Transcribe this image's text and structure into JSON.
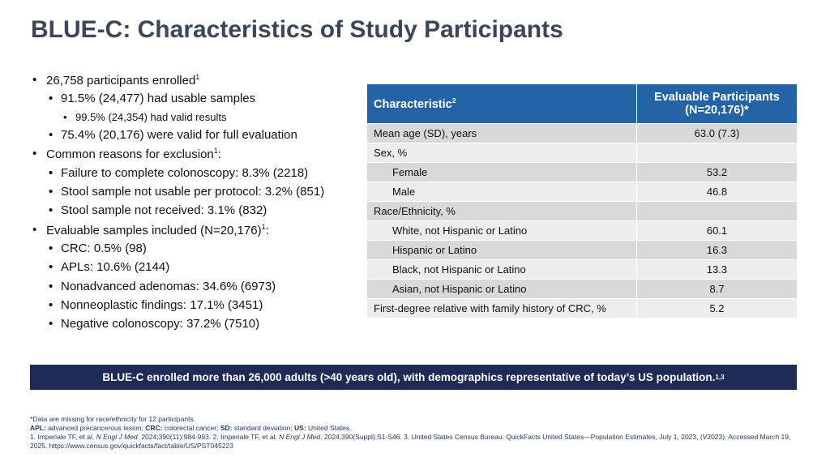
{
  "title": "BLUE-C: Characteristics of Study Participants",
  "bullets": [
    {
      "level": 0,
      "text": "26,758 participants enrolled",
      "sup": "1"
    },
    {
      "level": 1,
      "text": "91.5% (24,477) had usable samples"
    },
    {
      "level": 2,
      "text": "99.5% (24,354) had valid results"
    },
    {
      "level": 1,
      "text": "75.4% (20,176) were valid for full evaluation"
    },
    {
      "level": 0,
      "text": "Common reasons for exclusion",
      "sup": "1",
      "tail": ":"
    },
    {
      "level": 1,
      "text": "Failure to complete colonoscopy: 8.3% (2218)"
    },
    {
      "level": 1,
      "text": "Stool sample not usable per protocol: 3.2% (851)"
    },
    {
      "level": 1,
      "text": "Stool sample not received: 3.1% (832)"
    },
    {
      "level": 0,
      "text": "Evaluable samples included (N=20,176)",
      "sup": "1",
      "tail": ":"
    },
    {
      "level": 1,
      "text": "CRC: 0.5% (98)"
    },
    {
      "level": 1,
      "text": "APLs: 10.6% (2144)"
    },
    {
      "level": 1,
      "text": "Nonadvanced adenomas: 34.6% (6973)"
    },
    {
      "level": 1,
      "text": "Nonneoplastic findings: 17.1% (3451)"
    },
    {
      "level": 1,
      "text": "Negative colonoscopy: 37.2% (7510)"
    }
  ],
  "table": {
    "header": [
      {
        "text": "Characteristic",
        "sup": "2"
      },
      {
        "text": "Evaluable Participants (N=20,176)*"
      }
    ],
    "rows": [
      {
        "level": 0,
        "cells": [
          "Mean age (SD), years",
          "63.0 (7.3)"
        ]
      },
      {
        "level": 0,
        "cells": [
          "Sex, %"
        ]
      },
      {
        "level": 1,
        "cells": [
          "Female",
          "53.2"
        ]
      },
      {
        "level": 1,
        "cells": [
          "Male",
          "46.8"
        ]
      },
      {
        "level": 0,
        "cells": [
          "Race/Ethnicity, %"
        ]
      },
      {
        "level": 1,
        "cells": [
          "White, not Hispanic or Latino",
          "60.1"
        ]
      },
      {
        "level": 1,
        "cells": [
          "Hispanic or Latino",
          "16.3"
        ]
      },
      {
        "level": 1,
        "cells": [
          "Black, not Hispanic or Latino",
          "13.3"
        ]
      },
      {
        "level": 1,
        "cells": [
          "Asian, not Hispanic or Latino",
          "8.7"
        ]
      },
      {
        "level": 0,
        "cells": [
          "First-degree relative with family history of CRC, %",
          "5.2"
        ]
      }
    ]
  },
  "banner": {
    "text": "BLUE-C enrolled more than 26,000 adults (>40 years old), with demographics representative of today’s US population.",
    "sup": "1,3"
  },
  "footnotes": [
    [
      {
        "text": "*Data are missing for race/ethnicity for 12 participants."
      }
    ],
    [
      {
        "text": "APL:",
        "style": "b"
      },
      {
        "text": " advanced precancerous lesion; "
      },
      {
        "text": "CRC:",
        "style": "b"
      },
      {
        "text": " colorectal cancer; "
      },
      {
        "text": "SD:",
        "style": "b"
      },
      {
        "text": " standard deviation; "
      },
      {
        "text": "US:",
        "style": "b"
      },
      {
        "text": " United States."
      }
    ],
    [
      {
        "text": "1. Imperiale TF, et al. "
      },
      {
        "text": "N Engl J Med",
        "style": "i"
      },
      {
        "text": ". 2024;390(11):984-993. 2. Imperiale TF, et al. "
      },
      {
        "text": "N Engl J Med",
        "style": "i"
      },
      {
        "text": ". 2024;390(Suppl):S1-S46.  3. United States Census Bureau. QuickFacts United States—Population Estimates, July 1, 2023, (V2023). Accessed March 19, 2025. https://www.census.gov/quickfacts/fact/table/US/PST045223"
      }
    ]
  ]
}
